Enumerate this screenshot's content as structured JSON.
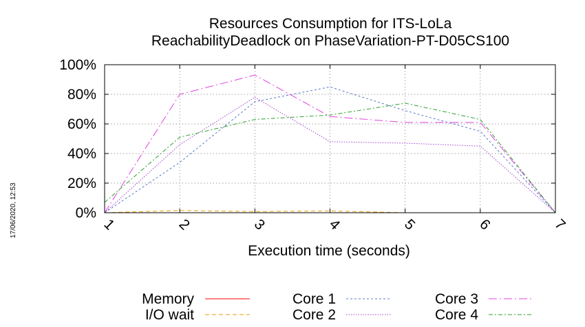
{
  "chart_data": {
    "type": "line",
    "title": "Resources Consumption for ITS-LoLa",
    "subtitle": "ReachabilityDeadlock on PhaseVariation-PT-D05CS100",
    "xlabel": "Execution time (seconds)",
    "ylabel": "",
    "x": [
      1,
      2,
      3,
      4,
      5,
      6,
      7
    ],
    "xlim": [
      1,
      7
    ],
    "ylim": [
      0,
      100
    ],
    "x_ticks": [
      "1",
      "2",
      "3",
      "4",
      "5",
      "6",
      "7"
    ],
    "y_ticks": [
      "0%",
      "20%",
      "40%",
      "60%",
      "80%",
      "100%"
    ],
    "grid": true,
    "legend_position": "bottom",
    "series": [
      {
        "name": "Memory",
        "color": "#ff0000",
        "dash": "",
        "values": [
          0,
          0,
          0,
          0,
          0,
          0,
          0
        ]
      },
      {
        "name": "I/O wait",
        "color": "#e69f00",
        "dash": "6,4",
        "values": [
          0,
          1.5,
          0.8,
          1.2,
          0,
          0,
          0
        ]
      },
      {
        "name": "Core 1",
        "color": "#5a78c8",
        "dash": "3,3",
        "values": [
          0,
          34,
          75,
          85,
          69,
          55,
          0
        ]
      },
      {
        "name": "Core 2",
        "color": "#a040d0",
        "dash": "1.5,2",
        "values": [
          0,
          46,
          78,
          48,
          47,
          45,
          0
        ]
      },
      {
        "name": "Core 3",
        "color": "#e040e0",
        "dash": "12,4,2,4",
        "values": [
          0,
          80,
          93,
          65,
          61,
          61,
          0
        ]
      },
      {
        "name": "Core 4",
        "color": "#2ca02c",
        "dash": "6,3,2,3",
        "values": [
          7,
          51,
          63,
          66,
          74,
          63,
          0
        ]
      }
    ]
  },
  "timestamp": "17/06/2020, 12:53"
}
